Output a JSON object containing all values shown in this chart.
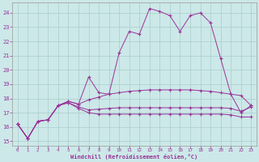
{
  "bg_color": "#cce8e8",
  "grid_color": "#aacccc",
  "line_color": "#993399",
  "xlabel": "Windchill (Refroidissement éolien,°C)",
  "ylim": [
    14.7,
    24.7
  ],
  "xlim": [
    -0.5,
    23.5
  ],
  "yticks": [
    15,
    16,
    17,
    18,
    19,
    20,
    21,
    22,
    23,
    24
  ],
  "xticks": [
    0,
    1,
    2,
    3,
    4,
    5,
    6,
    7,
    8,
    9,
    10,
    11,
    12,
    13,
    14,
    15,
    16,
    17,
    18,
    19,
    20,
    21,
    22,
    23
  ],
  "curves": [
    [
      16.2,
      15.2,
      16.4,
      16.5,
      17.5,
      17.8,
      17.6,
      19.5,
      18.4,
      18.3,
      21.2,
      22.7,
      22.5,
      24.3,
      24.1,
      23.8,
      22.7,
      23.8,
      24.0,
      23.3,
      20.8,
      18.3,
      17.0,
      17.5
    ],
    [
      16.2,
      15.2,
      16.4,
      16.5,
      17.5,
      17.8,
      17.6,
      17.9,
      18.1,
      18.3,
      18.4,
      18.5,
      18.55,
      18.6,
      18.6,
      18.6,
      18.6,
      18.6,
      18.55,
      18.5,
      18.4,
      18.3,
      18.2,
      17.5
    ],
    [
      16.2,
      15.2,
      16.4,
      16.5,
      17.5,
      17.7,
      17.4,
      17.2,
      17.25,
      17.3,
      17.35,
      17.35,
      17.35,
      17.35,
      17.35,
      17.35,
      17.35,
      17.35,
      17.35,
      17.35,
      17.35,
      17.3,
      17.1,
      17.4
    ],
    [
      16.2,
      15.2,
      16.4,
      16.5,
      17.5,
      17.7,
      17.3,
      17.0,
      16.9,
      16.9,
      16.9,
      16.9,
      16.9,
      16.9,
      16.9,
      16.9,
      16.9,
      16.9,
      16.9,
      16.9,
      16.9,
      16.85,
      16.7,
      16.7
    ]
  ]
}
